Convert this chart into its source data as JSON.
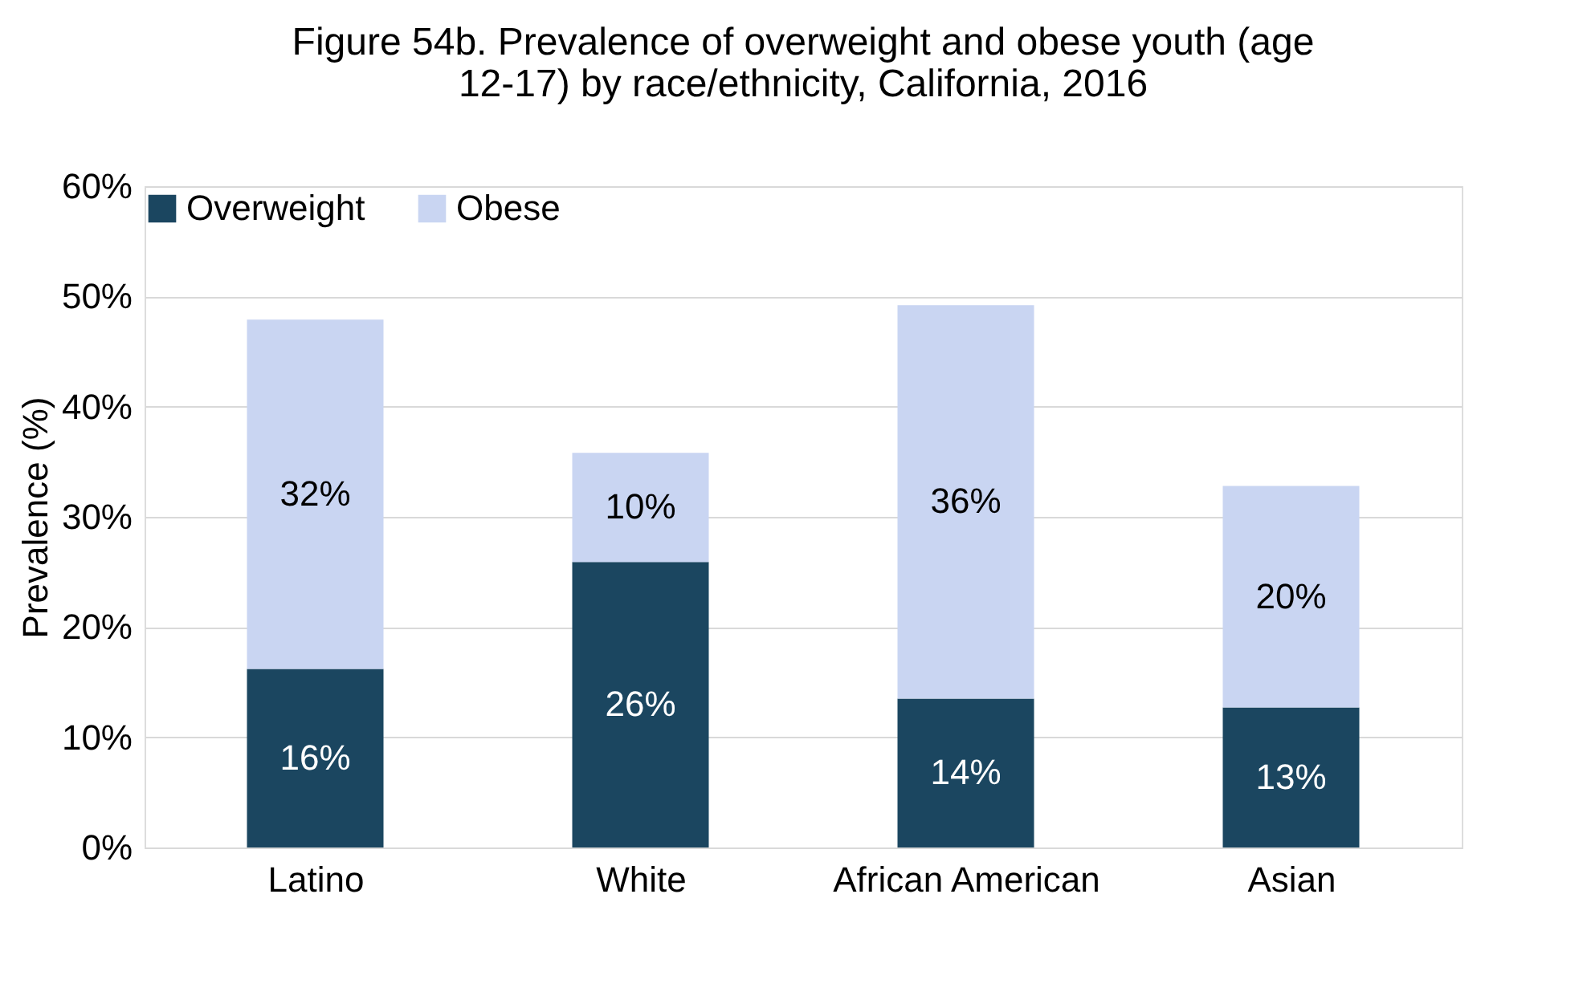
{
  "chart_data": {
    "type": "bar",
    "stacked": true,
    "title": "Figure 54b. Prevalence of overweight and obese youth (age 12-17) by race/ethnicity, California, 2016",
    "ylabel": "Prevalence (%)",
    "categories": [
      "Latino",
      "White",
      "African American",
      "Asian"
    ],
    "series": [
      {
        "name": "Overweight",
        "color": "#1b4660",
        "values": [
          16.2,
          25.9,
          13.5,
          12.7
        ],
        "value_labels": [
          "16%",
          "26%",
          "14%",
          "13%"
        ]
      },
      {
        "name": "Obese",
        "color": "#c9d5f2",
        "values": [
          31.7,
          9.9,
          35.7,
          20.1
        ],
        "value_labels": [
          "32%",
          "10%",
          "36%",
          "20%"
        ]
      }
    ],
    "ylim": [
      0,
      60
    ],
    "yticks": [
      {
        "value": 0,
        "label": "0%"
      },
      {
        "value": 10,
        "label": "10%"
      },
      {
        "value": 20,
        "label": "20%"
      },
      {
        "value": 30,
        "label": "30%"
      },
      {
        "value": 40,
        "label": "40%"
      },
      {
        "value": 50,
        "label": "50%"
      },
      {
        "value": 60,
        "label": "60%"
      }
    ],
    "grid": "y",
    "legend": "top"
  }
}
